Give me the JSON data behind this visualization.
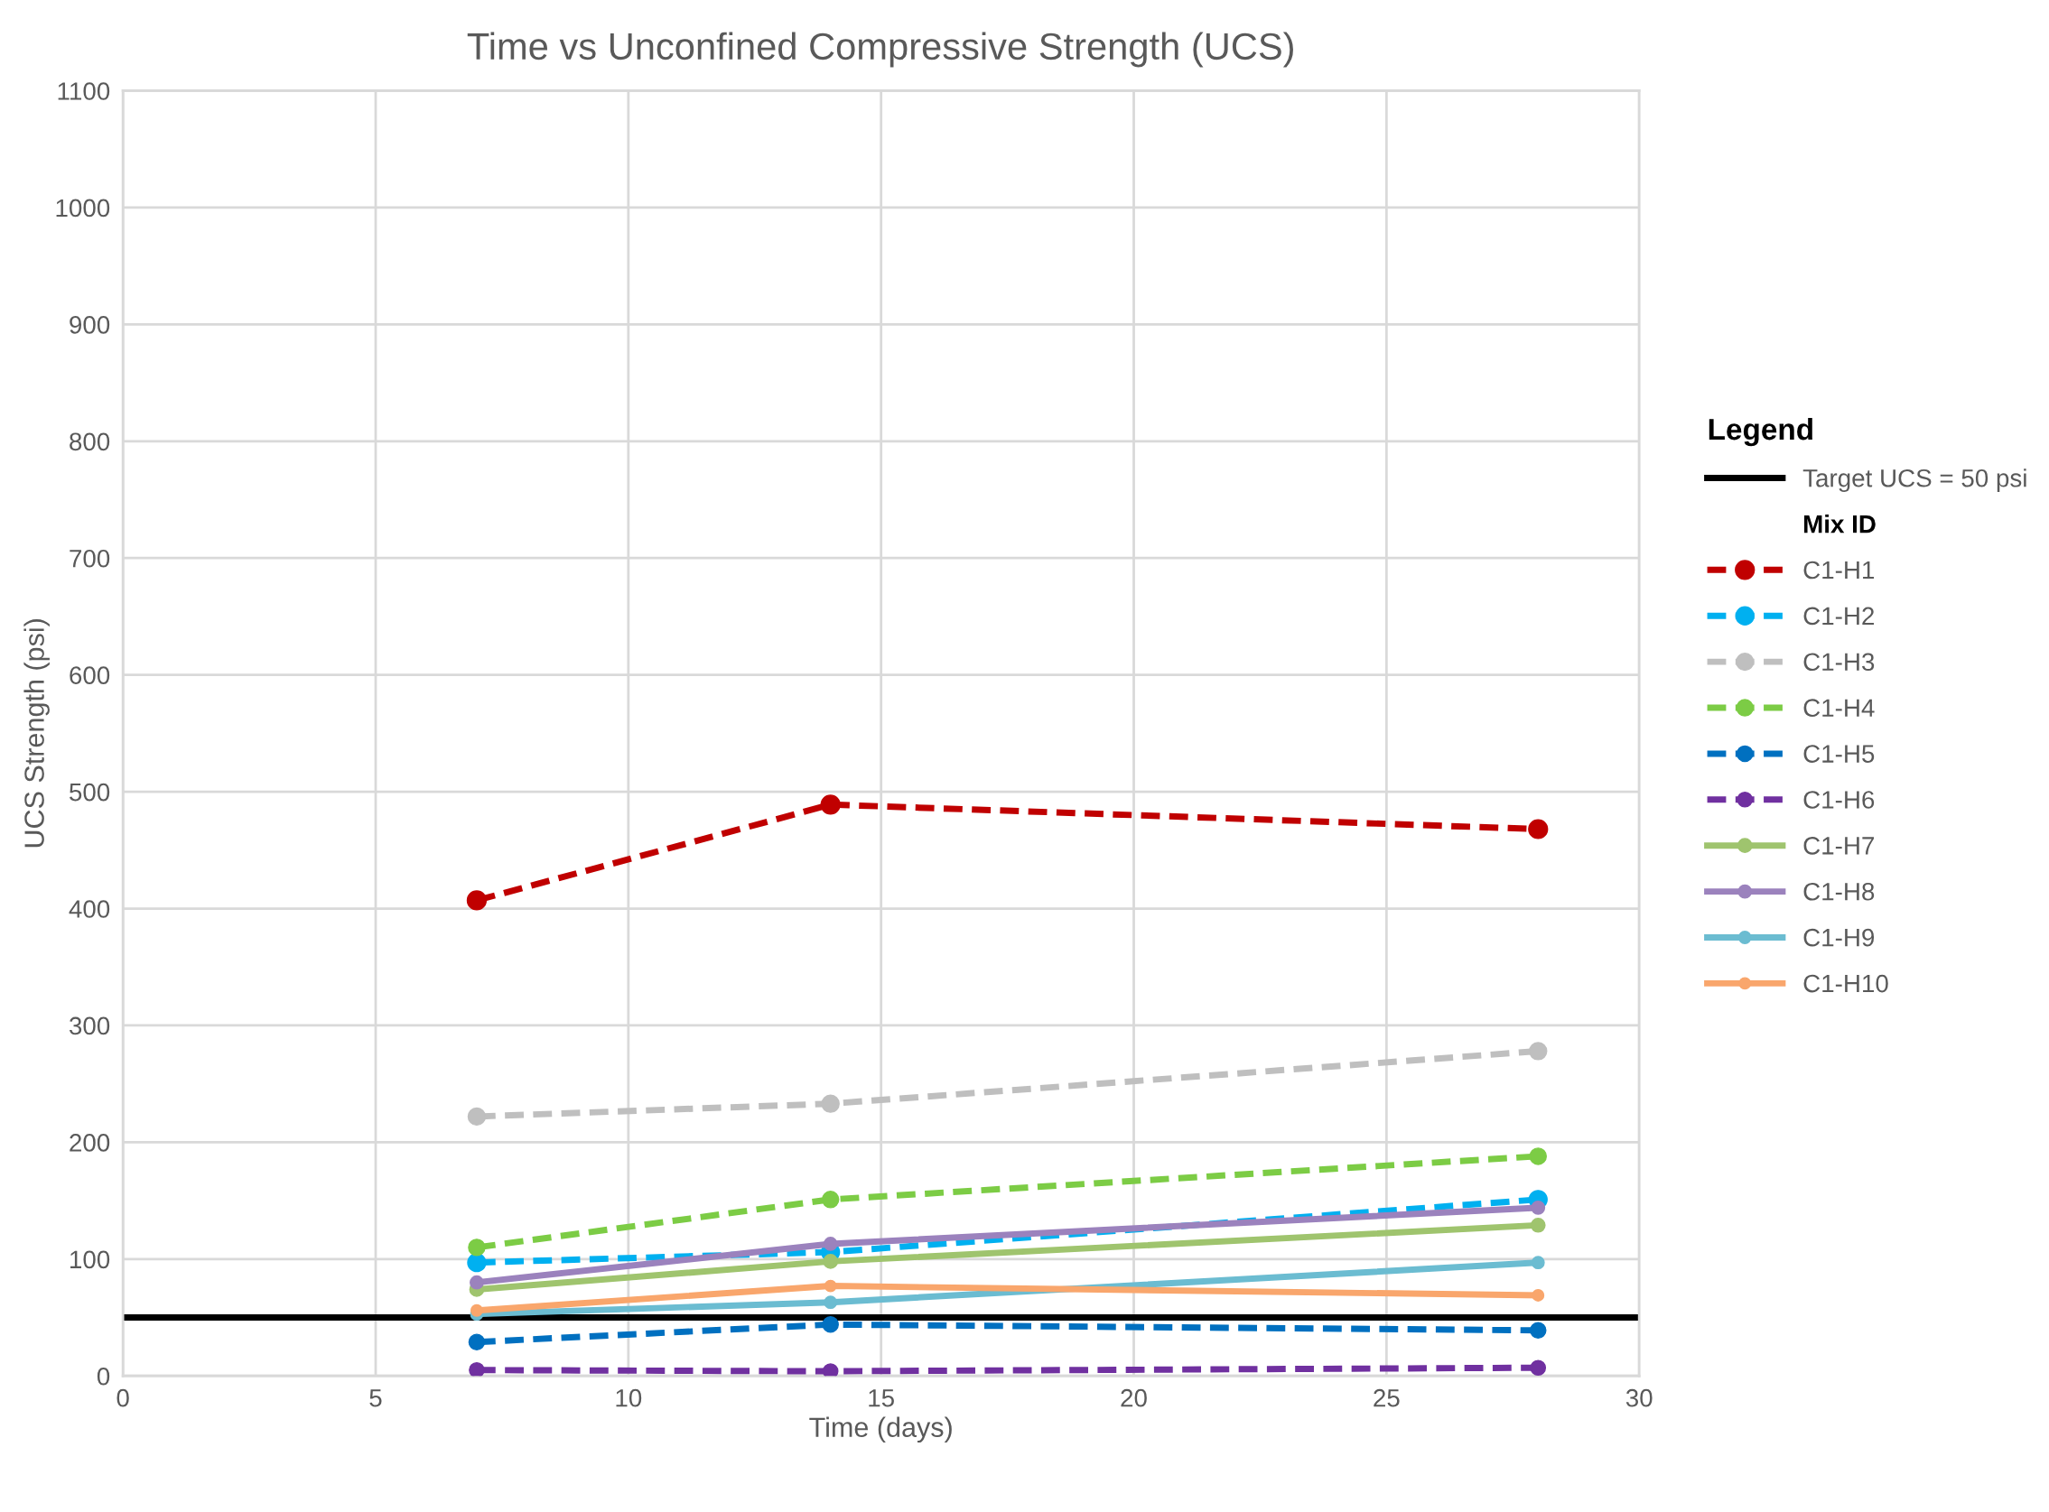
{
  "chart_data": {
    "type": "line",
    "title": "Time vs Unconfined Compressive Strength (UCS)",
    "xlabel": "Time (days)",
    "ylabel": "UCS Strength (psi)",
    "legend_title": "Legend",
    "x": [
      7,
      14,
      28
    ],
    "series": [
      {
        "name": "C1-H1",
        "color": "#c00000",
        "line_style": "dashed",
        "values": [
          407,
          489,
          468
        ]
      },
      {
        "name": "C1-H2",
        "color": "#00b0f0",
        "line_style": "dashed",
        "values": [
          97,
          106,
          151
        ]
      },
      {
        "name": "C1-H3",
        "color": "#bfbfbf",
        "line_style": "dashed",
        "values": [
          222,
          233,
          278
        ]
      },
      {
        "name": "C1-H4",
        "color": "#7ccc45",
        "line_style": "dashed",
        "values": [
          110,
          151,
          188
        ]
      },
      {
        "name": "C1-H5",
        "color": "#0070c0",
        "line_style": "dashed",
        "values": [
          29,
          44,
          39
        ]
      },
      {
        "name": "C1-H6",
        "color": "#7030a0",
        "line_style": "dashed",
        "values": [
          5,
          4,
          7
        ]
      },
      {
        "name": "C1-H7",
        "color": "#9fc46e",
        "line_style": "solid",
        "values": [
          74,
          98,
          129
        ]
      },
      {
        "name": "C1-H8",
        "color": "#9b82bd",
        "line_style": "solid",
        "values": [
          80,
          113,
          144
        ]
      },
      {
        "name": "C1-H9",
        "color": "#6bbcd1",
        "line_style": "solid",
        "values": [
          53,
          63,
          97
        ]
      },
      {
        "name": "C1-H10",
        "color": "#f9a66c",
        "line_style": "solid",
        "values": [
          56,
          77,
          69
        ]
      }
    ],
    "ref_lines": [
      {
        "axis": "y",
        "value": 50,
        "label": "Target UCS = 50 psi",
        "color": "#000000",
        "line_style": "solid"
      }
    ],
    "annotations": [
      "Mix ID"
    ],
    "xlim": [
      0,
      30
    ],
    "xticks": [
      0,
      5,
      10,
      15,
      20,
      25,
      30
    ],
    "ylim": [
      0,
      1100
    ],
    "yticks": [
      0,
      100,
      200,
      300,
      400,
      500,
      600,
      700,
      800,
      900,
      1000,
      1100
    ],
    "grid": true,
    "legend": "right",
    "marker": "circle"
  }
}
